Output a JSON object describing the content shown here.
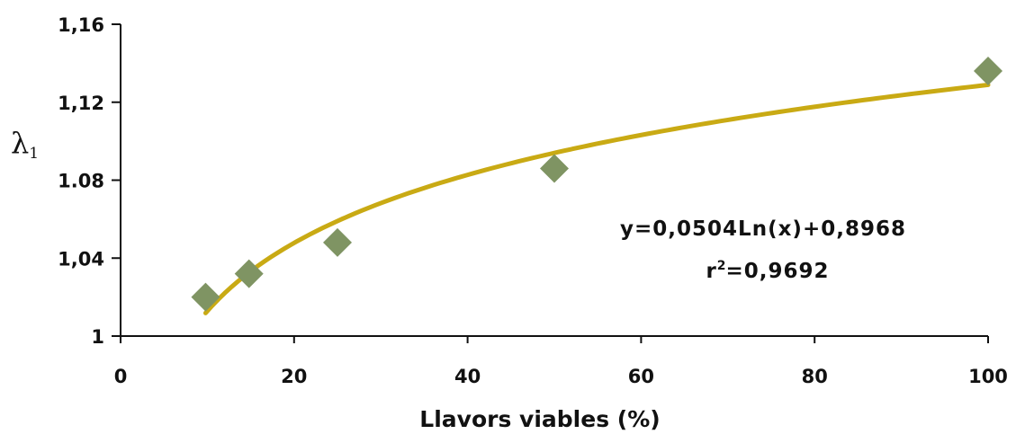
{
  "chart_data": {
    "type": "scatter",
    "xlabel": "Llavors viables (%)",
    "ylabel": "λ",
    "ylabel_subscript": "1",
    "xlim": [
      0,
      100
    ],
    "ylim": [
      1,
      1.16
    ],
    "x_ticks": [
      {
        "value": 0,
        "label": "0"
      },
      {
        "value": 20,
        "label": "20"
      },
      {
        "value": 40,
        "label": "40"
      },
      {
        "value": 60,
        "label": "60"
      },
      {
        "value": 80,
        "label": "80"
      },
      {
        "value": 100,
        "label": "100"
      }
    ],
    "y_ticks": [
      {
        "value": 1,
        "label": "1"
      },
      {
        "value": 1.04,
        "label": "1,04"
      },
      {
        "value": 1.08,
        "label": "1.08"
      },
      {
        "value": 1.12,
        "label": "1,12"
      },
      {
        "value": 1.16,
        "label": "1,16"
      }
    ],
    "series": [
      {
        "marker": "diamond",
        "color": "#7f9463",
        "points": [
          {
            "x": 9.8,
            "y": 1.02
          },
          {
            "x": 14.8,
            "y": 1.032
          },
          {
            "x": 25.0,
            "y": 1.048
          },
          {
            "x": 50.0,
            "y": 1.086
          },
          {
            "x": 100.0,
            "y": 1.136
          }
        ]
      }
    ],
    "trendline": {
      "type": "logarithmic",
      "a": 0.0504,
      "b": 0.8968,
      "x_range": [
        9.8,
        100
      ],
      "color": "#c9aa14"
    },
    "annotation": {
      "equation": "y=0,0504Ln(x)+0,8968",
      "r2_prefix": "r",
      "r2_sup": "2",
      "r2_value": "=0,9692"
    },
    "grid": false,
    "legend": "none"
  }
}
